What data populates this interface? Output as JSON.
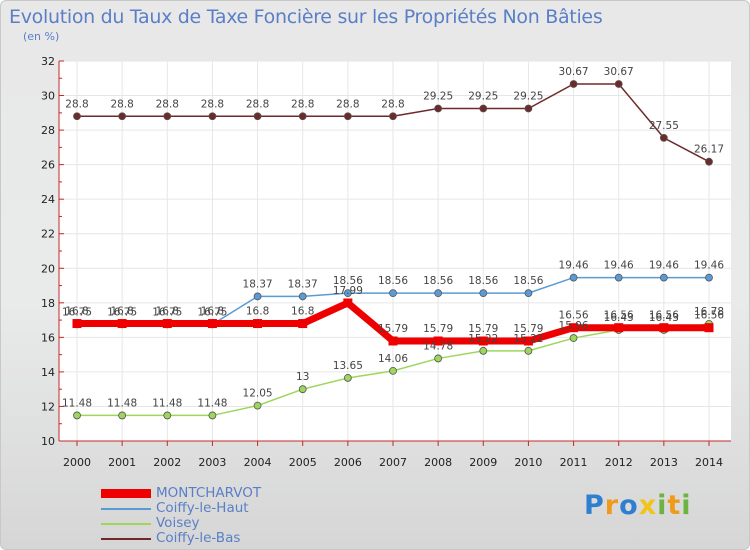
{
  "header": {
    "title": "Evolution du Taux de Taxe Foncière sur les Propriétés Non Bâties",
    "unit": "(en %)"
  },
  "chart_data": {
    "type": "line",
    "title": "Evolution du Taux de Taxe Foncière sur les Propriétés Non Bâties",
    "ylabel": "(en %)",
    "xlabel": "",
    "x": [
      2000,
      2001,
      2002,
      2003,
      2004,
      2005,
      2006,
      2007,
      2008,
      2009,
      2010,
      2011,
      2012,
      2013,
      2014
    ],
    "ylim": [
      10,
      32
    ],
    "yticks": [
      10,
      12,
      14,
      16,
      18,
      20,
      22,
      24,
      26,
      28,
      30,
      32
    ],
    "grid": true,
    "legend_position": "bottom-left",
    "series": [
      {
        "name": "Coiffy-le-Bas",
        "color": "#6e2a2a",
        "line_width": 1.5,
        "values": [
          28.8,
          28.8,
          28.8,
          28.8,
          28.8,
          28.8,
          28.8,
          28.8,
          29.25,
          29.25,
          29.25,
          30.67,
          30.67,
          27.55,
          26.17
        ],
        "labels": [
          "28.8",
          "28.8",
          "28.8",
          "28.8",
          "28.8",
          "28.8",
          "28.8",
          "28.8",
          "29.25",
          "29.25",
          "29.25",
          "30.67",
          "30.67",
          "27.55",
          "26.17"
        ]
      },
      {
        "name": "Coiffy-le-Haut",
        "color": "#5a9bd5",
        "line_width": 1.5,
        "values": [
          16.75,
          16.75,
          16.75,
          16.75,
          18.37,
          18.37,
          18.56,
          18.56,
          18.56,
          18.56,
          18.56,
          19.46,
          19.46,
          19.46,
          19.46
        ],
        "labels": [
          "16.75",
          "16.75",
          "16.75",
          "16.75",
          "18.37",
          "18.37",
          "18.56",
          "18.56",
          "18.56",
          "18.56",
          "18.56",
          "19.46",
          "19.46",
          "19.46",
          "19.46"
        ]
      },
      {
        "name": "Voisey",
        "color": "#9ed65c",
        "line_width": 1.5,
        "values": [
          11.48,
          11.48,
          11.48,
          11.48,
          12.05,
          13,
          13.65,
          14.06,
          14.78,
          15.22,
          15.22,
          15.96,
          16.43,
          16.43,
          16.78
        ],
        "labels": [
          "11.48",
          "11.48",
          "11.48",
          "11.48",
          "12.05",
          "13",
          "13.65",
          "14.06",
          "14.78",
          "15.22",
          "15.22",
          "15.96",
          "16.43",
          "16.43",
          "16.78"
        ]
      },
      {
        "name": "MONTCHARVOT",
        "color": "#ee0000",
        "line_width": 7,
        "values": [
          16.8,
          16.8,
          16.8,
          16.8,
          16.8,
          16.8,
          17.99,
          15.79,
          15.79,
          15.79,
          15.79,
          16.56,
          16.56,
          16.56,
          16.56
        ],
        "labels": [
          "16.8",
          "16.8",
          "16.8",
          "16.8",
          "16.8",
          "16.8",
          "17.99",
          "15.79",
          "15.79",
          "15.79",
          "15.79",
          "16.56",
          "16.56",
          "16.56",
          "16.56"
        ]
      }
    ]
  },
  "legend": {
    "items": [
      {
        "name": "MONTCHARVOT",
        "color": "#ee0000",
        "thickness": "thick"
      },
      {
        "name": "Coiffy-le-Haut",
        "color": "#5a9bd5",
        "thickness": "thin"
      },
      {
        "name": "Voisey",
        "color": "#9ed65c",
        "thickness": "thin"
      },
      {
        "name": "Coiffy-le-Bas",
        "color": "#6e2a2a",
        "thickness": "thin"
      }
    ]
  },
  "logo": {
    "letters": [
      "P",
      "r",
      "o",
      "x",
      "i",
      "t",
      "i"
    ],
    "colors": [
      "#2f7fd0",
      "#ef9a1a",
      "#2f7fd0",
      "#f0c418",
      "#6db33f",
      "#ef9a1a",
      "#6db33f"
    ]
  }
}
